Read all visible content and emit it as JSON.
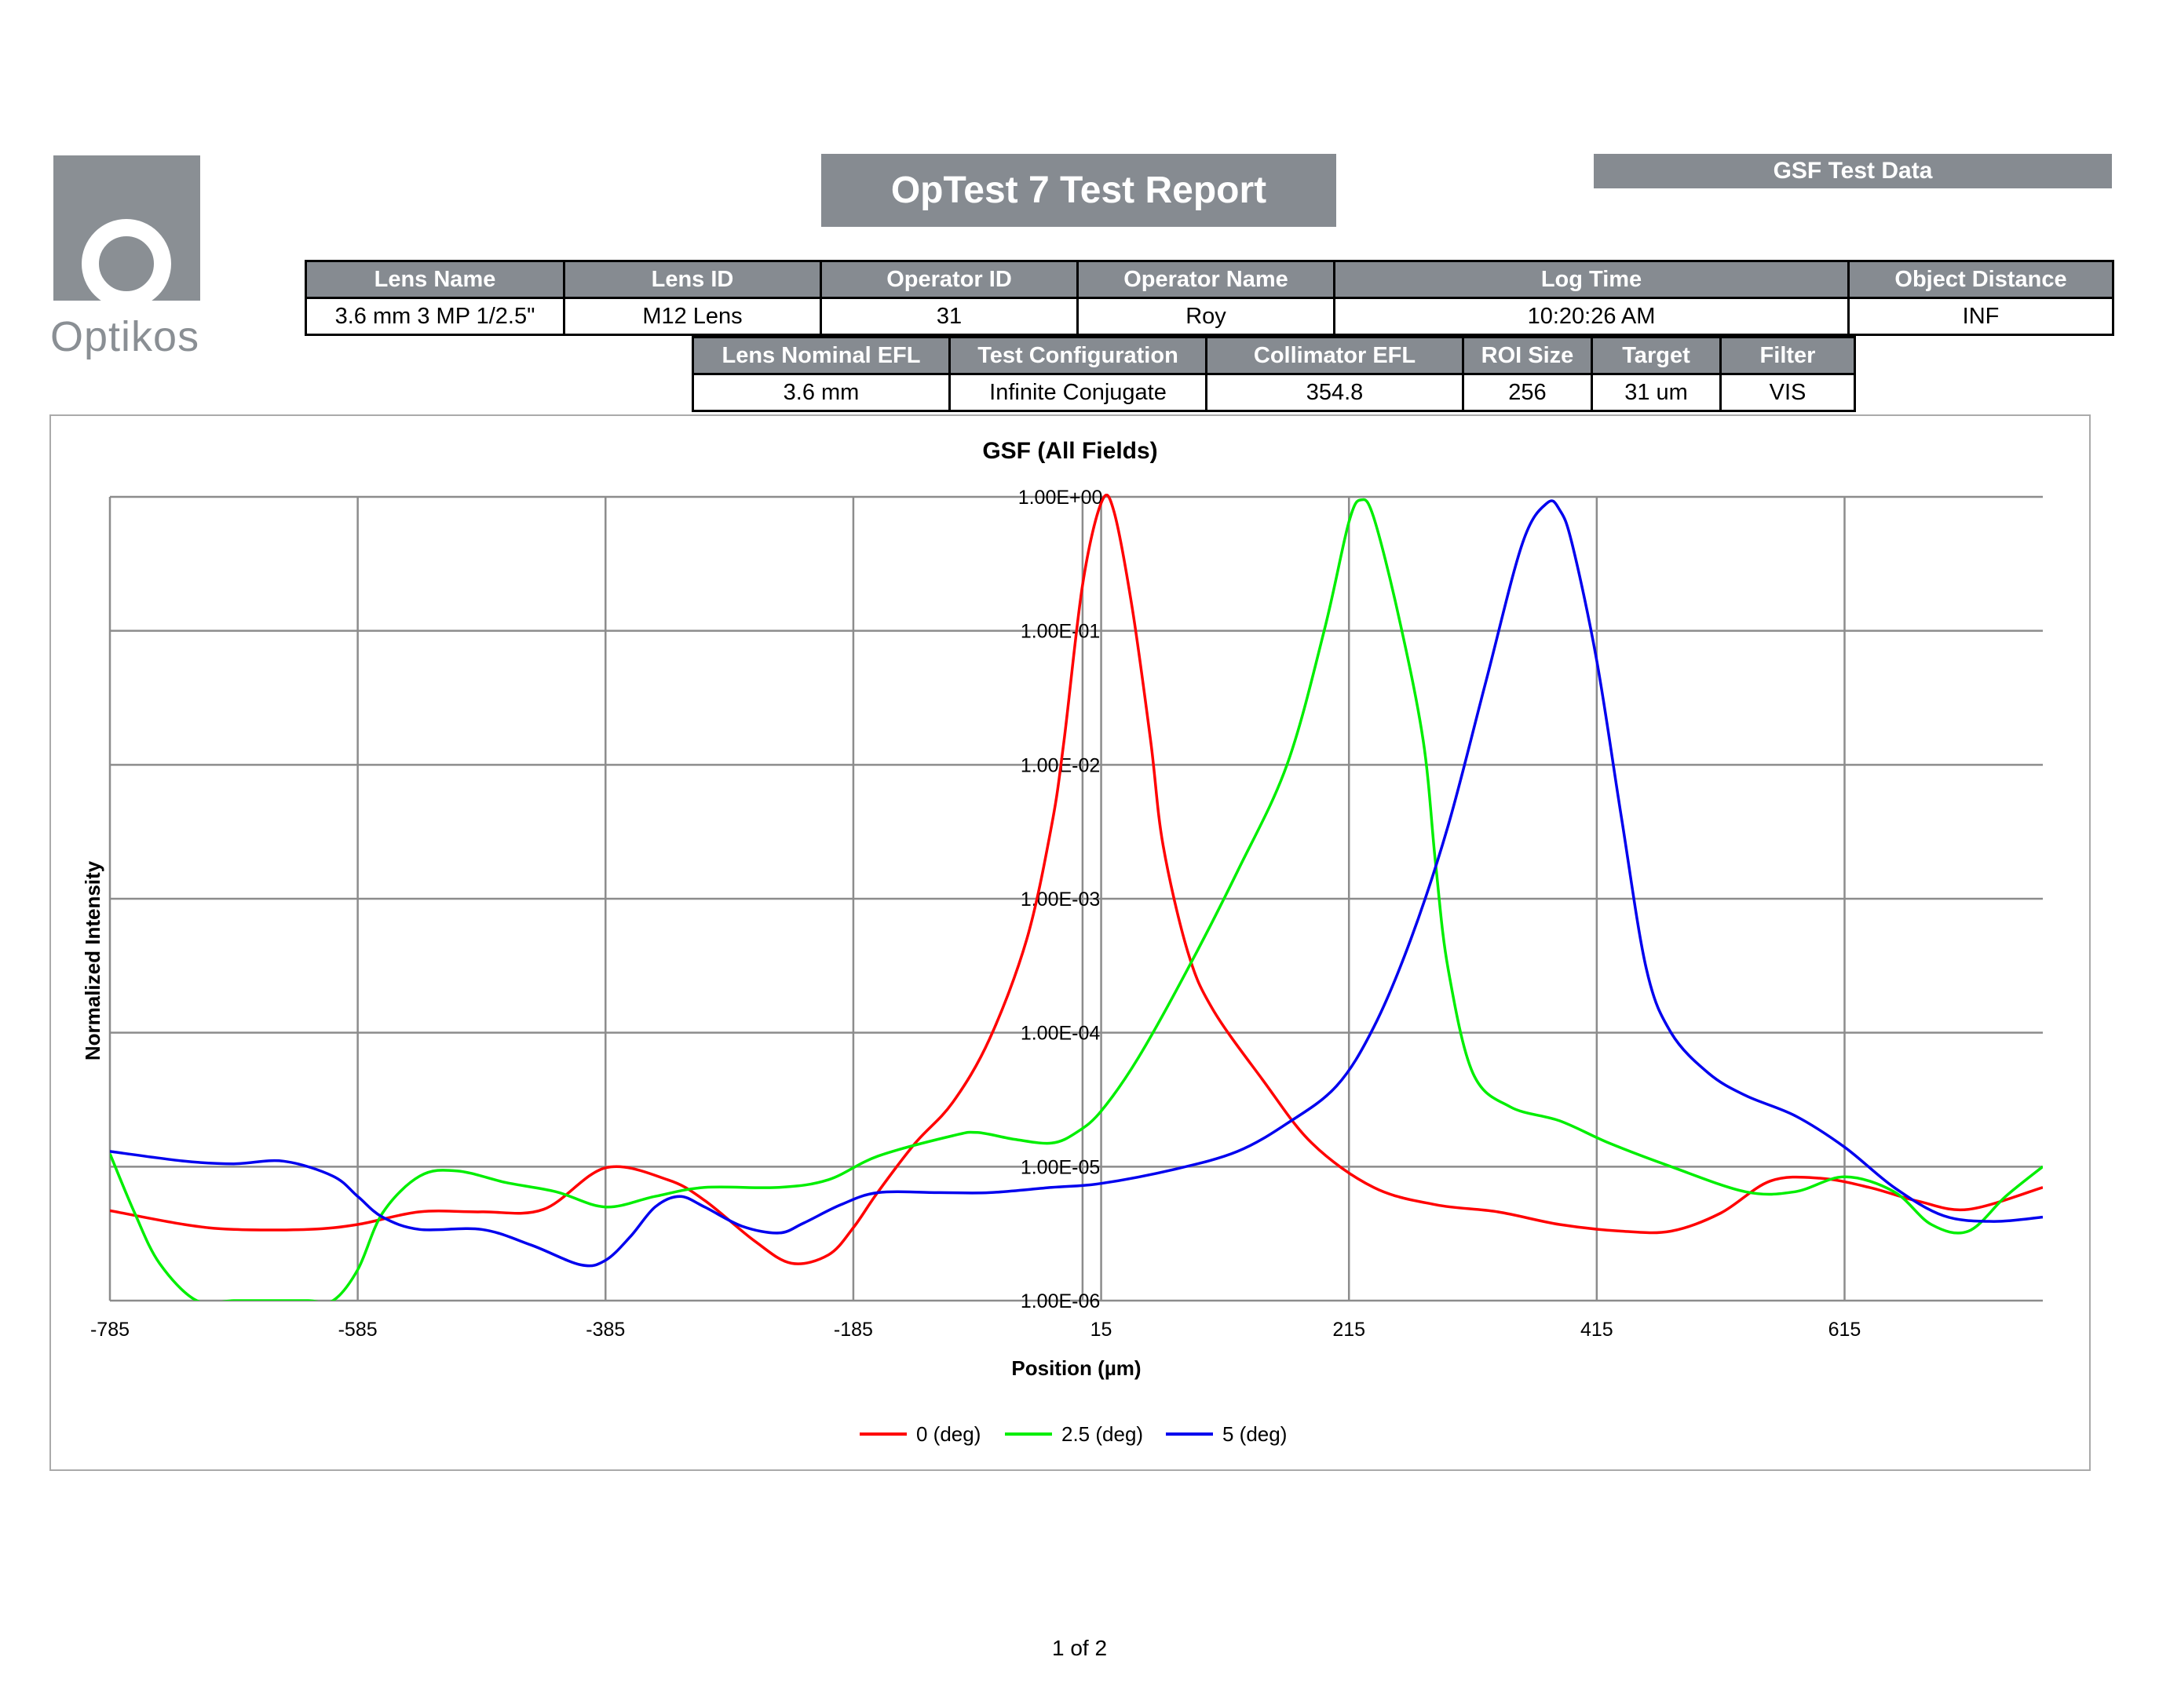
{
  "logo": {
    "text": "Optikos"
  },
  "report_title": "OpTest 7 Test Report",
  "section_label": "GSF Test Data",
  "info_table_1": {
    "headers": [
      "Lens Name",
      "Lens ID",
      "Operator ID",
      "Operator Name",
      "Log Time",
      "Object Distance"
    ],
    "values": [
      "3.6 mm 3 MP 1/2.5\"",
      "M12 Lens",
      "31",
      "Roy",
      "10:20:26 AM",
      "INF"
    ]
  },
  "info_table_2": {
    "headers": [
      "Lens Nominal EFL",
      "Test Configuration",
      "Collimator EFL",
      "ROI Size",
      "Target",
      "Filter"
    ],
    "values": [
      "3.6 mm",
      "Infinite Conjugate",
      "354.8",
      "256",
      "31 um",
      "VIS"
    ]
  },
  "chart_data": {
    "type": "line",
    "title": "GSF (All Fields)",
    "xlabel": "Position (µm)",
    "ylabel": "Normalized Intensity",
    "xlim": [
      -785,
      775
    ],
    "ylim": [
      1e-06,
      1
    ],
    "yscale": "log",
    "x_ticks": [
      "-785",
      "-585",
      "-385",
      "-185",
      "15",
      "215",
      "415",
      "615"
    ],
    "y_ticks": [
      "1.00E-06",
      "1.00E-05",
      "1.00E-04",
      "1.00E-03",
      "1.00E-02",
      "1.00E-01",
      "1.00E+00"
    ],
    "grid": true,
    "legend_position": "bottom",
    "series": [
      {
        "name": "0 (deg)",
        "color": "#ff0000",
        "x": [
          -785,
          -725,
          -685,
          -625,
          -585,
          -535,
          -485,
          -435,
          -385,
          -335,
          -305,
          -265,
          -235,
          -205,
          -185,
          -165,
          -135,
          -105,
          -75,
          -45,
          -25,
          -15,
          0,
          15,
          25,
          40,
          55,
          65,
          85,
          105,
          145,
          185,
          235,
          285,
          335,
          385,
          435,
          475,
          515,
          555,
          595,
          635,
          675,
          715,
          775
        ],
        "y": [
          4.7e-06,
          3.7e-06,
          3.4e-06,
          3.4e-06,
          3.7e-06,
          4.6e-06,
          4.6e-06,
          4.8e-06,
          9.8e-06,
          8e-06,
          5.6e-06,
          2.8e-06,
          1.9e-06,
          2.2e-06,
          3.5e-06,
          6.5e-06,
          1.5e-05,
          3e-05,
          9e-05,
          0.0005,
          0.0035,
          0.015,
          0.22,
          0.9,
          0.8,
          0.15,
          0.015,
          0.0025,
          0.0004,
          0.00015,
          4.5e-05,
          1.5e-05,
          7e-06,
          5.2e-06,
          4.6e-06,
          3.7e-06,
          3.3e-06,
          3.3e-06,
          4.5e-06,
          7.8e-06,
          8.2e-06,
          7e-06,
          5.5e-06,
          4.8e-06,
          7e-06
        ]
      },
      {
        "name": "2.5 (deg)",
        "color": "#00ee00",
        "x": [
          -785,
          -765,
          -745,
          -715,
          -685,
          -655,
          -625,
          -605,
          -585,
          -565,
          -535,
          -505,
          -465,
          -425,
          -385,
          -345,
          -305,
          -245,
          -205,
          -165,
          -105,
          -85,
          -55,
          -25,
          -5,
          15,
          45,
          85,
          125,
          165,
          195,
          215,
          225,
          235,
          255,
          275,
          285,
          295,
          315,
          345,
          385,
          425,
          475,
          535,
          575,
          615,
          655,
          685,
          715,
          745,
          775
        ],
        "y": [
          1.25e-05,
          4.5e-06,
          1.9e-06,
          1e-06,
          1e-06,
          1e-06,
          1e-06,
          1e-06,
          1.7e-06,
          4.5e-06,
          8.5e-06,
          9.3e-06,
          7.6e-06,
          6.5e-06,
          5e-06,
          6e-06,
          7e-06,
          7e-06,
          8e-06,
          1.2e-05,
          1.7e-05,
          1.8e-05,
          1.6e-05,
          1.5e-05,
          1.8e-05,
          2.6e-05,
          6.5e-05,
          0.0003,
          0.0016,
          0.01,
          0.1,
          0.65,
          0.95,
          0.7,
          0.13,
          0.015,
          0.0018,
          0.0003,
          5e-05,
          2.8e-05,
          2.2e-05,
          1.5e-05,
          1e-05,
          6.5e-06,
          6.5e-06,
          8.4e-06,
          6.5e-06,
          3.7e-06,
          3.3e-06,
          6e-06,
          1e-05
        ]
      },
      {
        "name": "5 (deg)",
        "color": "#0000ee",
        "x": [
          -785,
          -725,
          -685,
          -645,
          -605,
          -585,
          -565,
          -535,
          -485,
          -445,
          -405,
          -385,
          -365,
          -345,
          -325,
          -305,
          -275,
          -245,
          -225,
          -195,
          -165,
          -115,
          -75,
          -25,
          15,
          75,
          125,
          165,
          205,
          235,
          265,
          295,
          325,
          355,
          375,
          385,
          395,
          415,
          435,
          455,
          475,
          505,
          535,
          575,
          615,
          655,
          695,
          735,
          775
        ],
        "y": [
          1.3e-05,
          1.1e-05,
          1.05e-05,
          1.1e-05,
          8.5e-06,
          6e-06,
          4.2e-06,
          3.4e-06,
          3.4e-06,
          2.6e-06,
          1.85e-06,
          2e-06,
          3e-06,
          5e-06,
          6e-06,
          5e-06,
          3.6e-06,
          3.2e-06,
          3.8e-06,
          5.2e-06,
          6.4e-06,
          6.4e-06,
          6.4e-06,
          7e-06,
          7.5e-06,
          9.6e-06,
          1.3e-05,
          2.1e-05,
          4e-05,
          0.00011,
          0.0005,
          0.0035,
          0.04,
          0.45,
          0.9,
          0.8,
          0.45,
          0.06,
          0.004,
          0.0003,
          0.0001,
          5e-05,
          3.4e-05,
          2.4e-05,
          1.4e-05,
          7e-06,
          4.3e-06,
          3.9e-06,
          4.2e-06
        ]
      }
    ]
  },
  "footer": {
    "page": "1 of 2"
  }
}
